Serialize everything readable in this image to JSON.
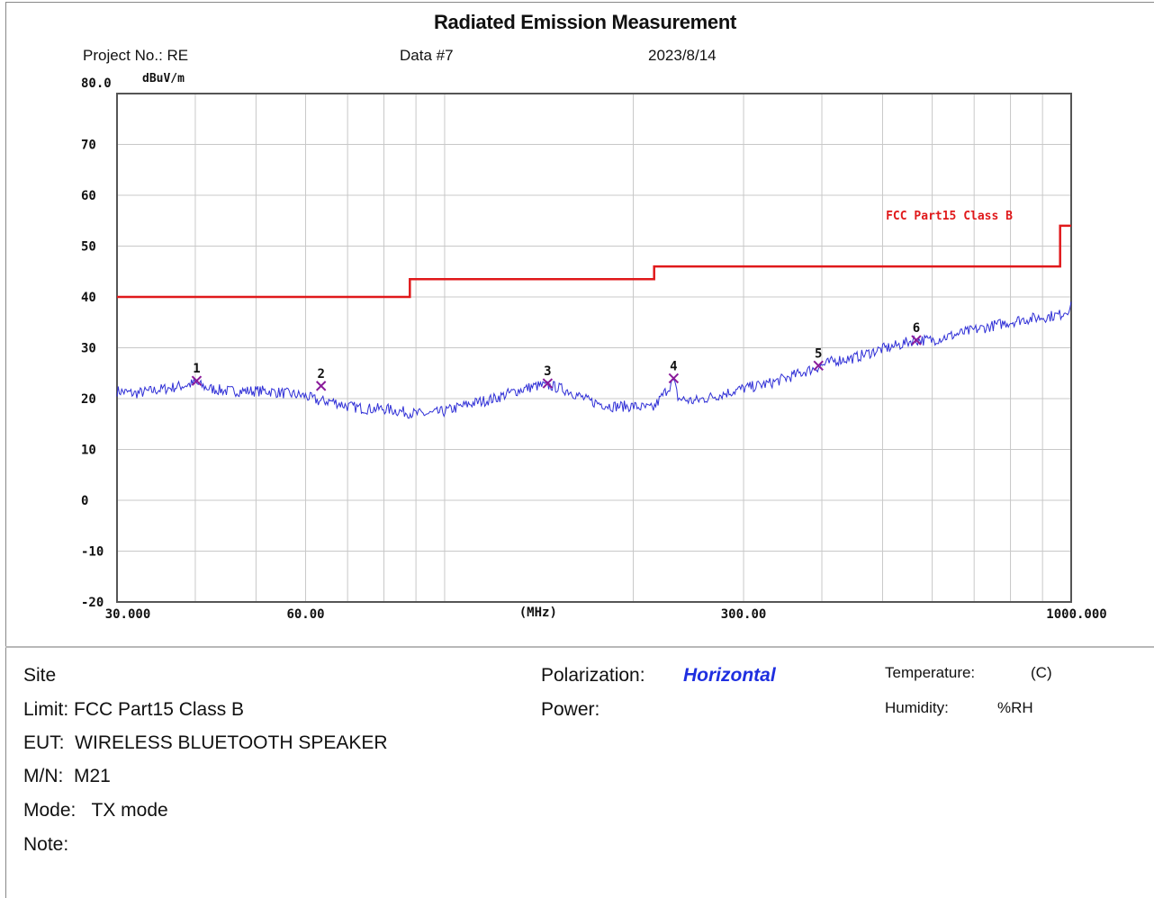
{
  "report": {
    "title": "Radiated Emission Measurement",
    "project": "Project No.: RE",
    "data_no": "Data #7",
    "date": "2023/8/14"
  },
  "chart_data": {
    "type": "line",
    "title": "Radiated Emission Measurement",
    "ylabel": "dBuV/m",
    "xlabel": "(MHz)",
    "x_scale": "log",
    "xlim": [
      30,
      1000
    ],
    "ylim": [
      -20,
      80
    ],
    "y_ticks": [
      "80.0",
      "70",
      "60",
      "50",
      "40",
      "30",
      "20",
      "10",
      "0",
      "-10",
      "-20"
    ],
    "x_ticks": [
      {
        "label": "30.000",
        "value": 30
      },
      {
        "label": "60.00",
        "value": 60
      },
      {
        "label": "(MHz)",
        "value": 141
      },
      {
        "label": "300.00",
        "value": 300
      },
      {
        "label": "1000.000",
        "value": 1000
      }
    ],
    "grid": true,
    "limit_line": {
      "name": "FCC Part15 Class B",
      "color": "#e0191b",
      "steps": [
        {
          "x_start": 30,
          "x_end": 88,
          "y": 40.0
        },
        {
          "x_start": 88,
          "x_end": 216,
          "y": 43.5
        },
        {
          "x_start": 216,
          "x_end": 960,
          "y": 46.0
        },
        {
          "x_start": 960,
          "x_end": 1000,
          "y": 54.0
        }
      ]
    },
    "trace": {
      "color": "#2f2fd6",
      "points": [
        [
          30,
          21.5
        ],
        [
          32,
          21.0
        ],
        [
          34,
          21.5
        ],
        [
          36,
          22.0
        ],
        [
          38,
          22.5
        ],
        [
          40,
          23.0
        ],
        [
          42,
          22.0
        ],
        [
          45,
          21.5
        ],
        [
          48,
          21.5
        ],
        [
          52,
          21.5
        ],
        [
          56,
          21.0
        ],
        [
          60,
          20.5
        ],
        [
          63,
          19.5
        ],
        [
          66,
          19.5
        ],
        [
          70,
          18.5
        ],
        [
          75,
          18.0
        ],
        [
          80,
          18.0
        ],
        [
          85,
          17.5
        ],
        [
          90,
          17.0
        ],
        [
          95,
          17.0
        ],
        [
          100,
          17.5
        ],
        [
          110,
          19.0
        ],
        [
          120,
          20.0
        ],
        [
          130,
          21.5
        ],
        [
          140,
          22.5
        ],
        [
          148,
          22.5
        ],
        [
          158,
          21.5
        ],
        [
          170,
          19.5
        ],
        [
          185,
          18.5
        ],
        [
          200,
          18.5
        ],
        [
          215,
          18.0
        ],
        [
          224,
          21.0
        ],
        [
          232,
          23.5
        ],
        [
          236,
          20.0
        ],
        [
          250,
          19.5
        ],
        [
          270,
          20.5
        ],
        [
          300,
          22.0
        ],
        [
          330,
          23.0
        ],
        [
          360,
          24.5
        ],
        [
          390,
          26.0
        ],
        [
          420,
          27.5
        ],
        [
          450,
          28.0
        ],
        [
          490,
          29.5
        ],
        [
          530,
          30.5
        ],
        [
          560,
          31.5
        ],
        [
          600,
          31.5
        ],
        [
          650,
          32.5
        ],
        [
          700,
          33.5
        ],
        [
          760,
          34.5
        ],
        [
          830,
          35.5
        ],
        [
          900,
          36.0
        ],
        [
          960,
          36.5
        ],
        [
          1000,
          38.0
        ]
      ]
    },
    "markers": [
      {
        "label": "1",
        "x": 40.2,
        "y": 23.5
      },
      {
        "label": "2",
        "x": 63.5,
        "y": 22.5
      },
      {
        "label": "3",
        "x": 146.0,
        "y": 23.0
      },
      {
        "label": "4",
        "x": 232.0,
        "y": 24.0
      },
      {
        "label": "5",
        "x": 395.0,
        "y": 26.5
      },
      {
        "label": "6",
        "x": 566.0,
        "y": 31.5
      }
    ]
  },
  "info": {
    "site": "Site",
    "limit": "Limit: FCC Part15 Class B",
    "eut": "EUT:  WIRELESS BLUETOOTH SPEAKER",
    "mn": "M/N:  M21",
    "mode": "Mode:   TX mode",
    "note": "Note:",
    "polarization_label": "Polarization:",
    "polarization_value": "Horizontal",
    "power_label": "Power:",
    "temperature_label": "Temperature:",
    "temperature_unit": "(C)",
    "humidity_label": "Humidity:",
    "humidity_unit": "%RH"
  }
}
